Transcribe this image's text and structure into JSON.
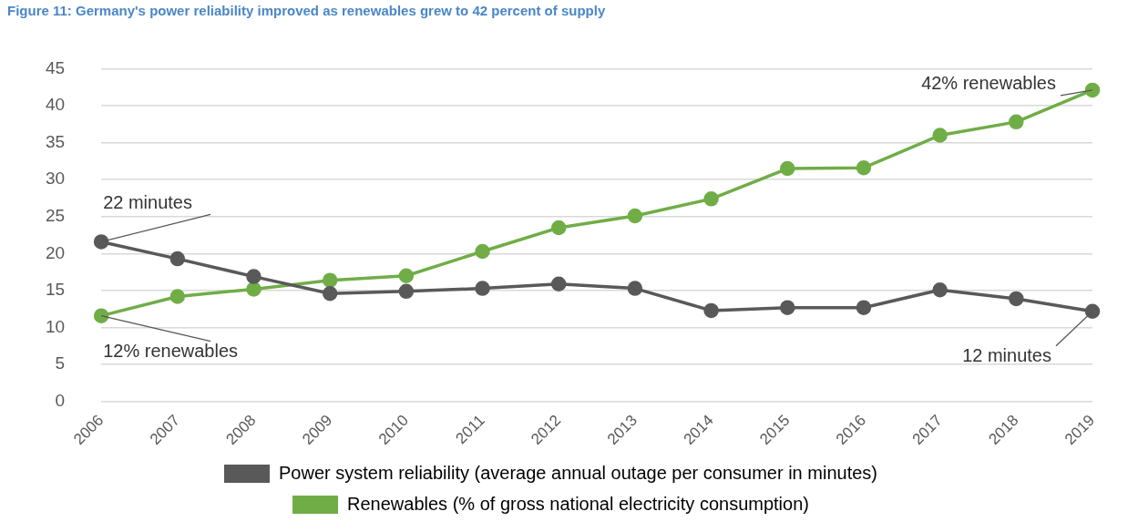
{
  "chart_data": {
    "type": "line",
    "title": "Figure 11: Germany's power reliability improved as renewables grew to 42 percent of supply",
    "categories": [
      "2006",
      "2007",
      "2008",
      "2009",
      "2010",
      "2011",
      "2012",
      "2013",
      "2014",
      "2015",
      "2016",
      "2017",
      "2018",
      "2019"
    ],
    "series": [
      {
        "name": "Power system reliability (average annual outage per consumer in minutes)",
        "color": "#595959",
        "values": [
          21.6,
          19.3,
          16.9,
          14.6,
          14.9,
          15.3,
          15.9,
          15.3,
          12.3,
          12.7,
          12.7,
          15.1,
          13.9,
          12.2
        ]
      },
      {
        "name": "Renewables (% of gross national electricity consumption)",
        "color": "#70ad47",
        "values": [
          11.6,
          14.2,
          15.2,
          16.4,
          17.0,
          20.3,
          23.5,
          25.1,
          27.4,
          31.5,
          31.6,
          36.0,
          37.8,
          42.1
        ]
      }
    ],
    "ylim": [
      0,
      45
    ],
    "yticks": [
      0,
      5,
      10,
      15,
      20,
      25,
      30,
      35,
      40,
      45
    ],
    "grid": "y",
    "legend": "bottom",
    "marker": "circle",
    "line_style": "solid",
    "annotations": [
      {
        "text": "22 minutes",
        "x": "2006",
        "y": 21.6
      },
      {
        "text": "12% renewables",
        "x": "2006",
        "y": 11.6
      },
      {
        "text": "42% renewables",
        "x": "2019",
        "y": 42.1
      },
      {
        "text": "12 minutes",
        "x": "2019",
        "y": 12.2
      }
    ]
  }
}
